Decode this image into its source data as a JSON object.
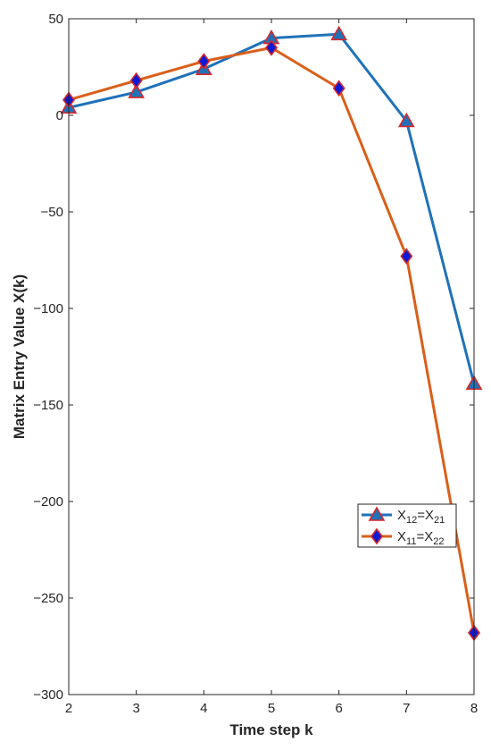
{
  "chart_data": {
    "type": "line",
    "title": "",
    "xlabel": "Time step k",
    "ylabel": "Matrix Entry Value X(k)",
    "x": [
      2,
      3,
      4,
      5,
      6,
      7,
      8
    ],
    "xlim": [
      2,
      8
    ],
    "ylim": [
      -300,
      50
    ],
    "xticks": [
      2,
      3,
      4,
      5,
      6,
      7,
      8
    ],
    "yticks": [
      50,
      0,
      -50,
      -100,
      -150,
      -200,
      -250,
      -300
    ],
    "grid": false,
    "legend_position": "lower-right",
    "series": [
      {
        "name": "X12=X21",
        "legend": {
          "base1": "X",
          "sub1": "12",
          "mid": "=X",
          "sub2": "21"
        },
        "values": [
          4,
          12,
          24,
          40,
          42,
          -3,
          -139
        ],
        "color": "#1f72b8",
        "marker": "triangle",
        "marker_fill": "#1f72b8",
        "marker_edge": "#d9262b"
      },
      {
        "name": "X11=X22",
        "legend": {
          "base1": "X",
          "sub1": "11",
          "mid": "=X",
          "sub2": "22"
        },
        "values": [
          8,
          18,
          28,
          35,
          14,
          -73,
          -268
        ],
        "color": "#d95f1a",
        "marker": "diamond",
        "marker_fill": "#0a1ad6",
        "marker_edge": "#d9262b"
      }
    ]
  }
}
